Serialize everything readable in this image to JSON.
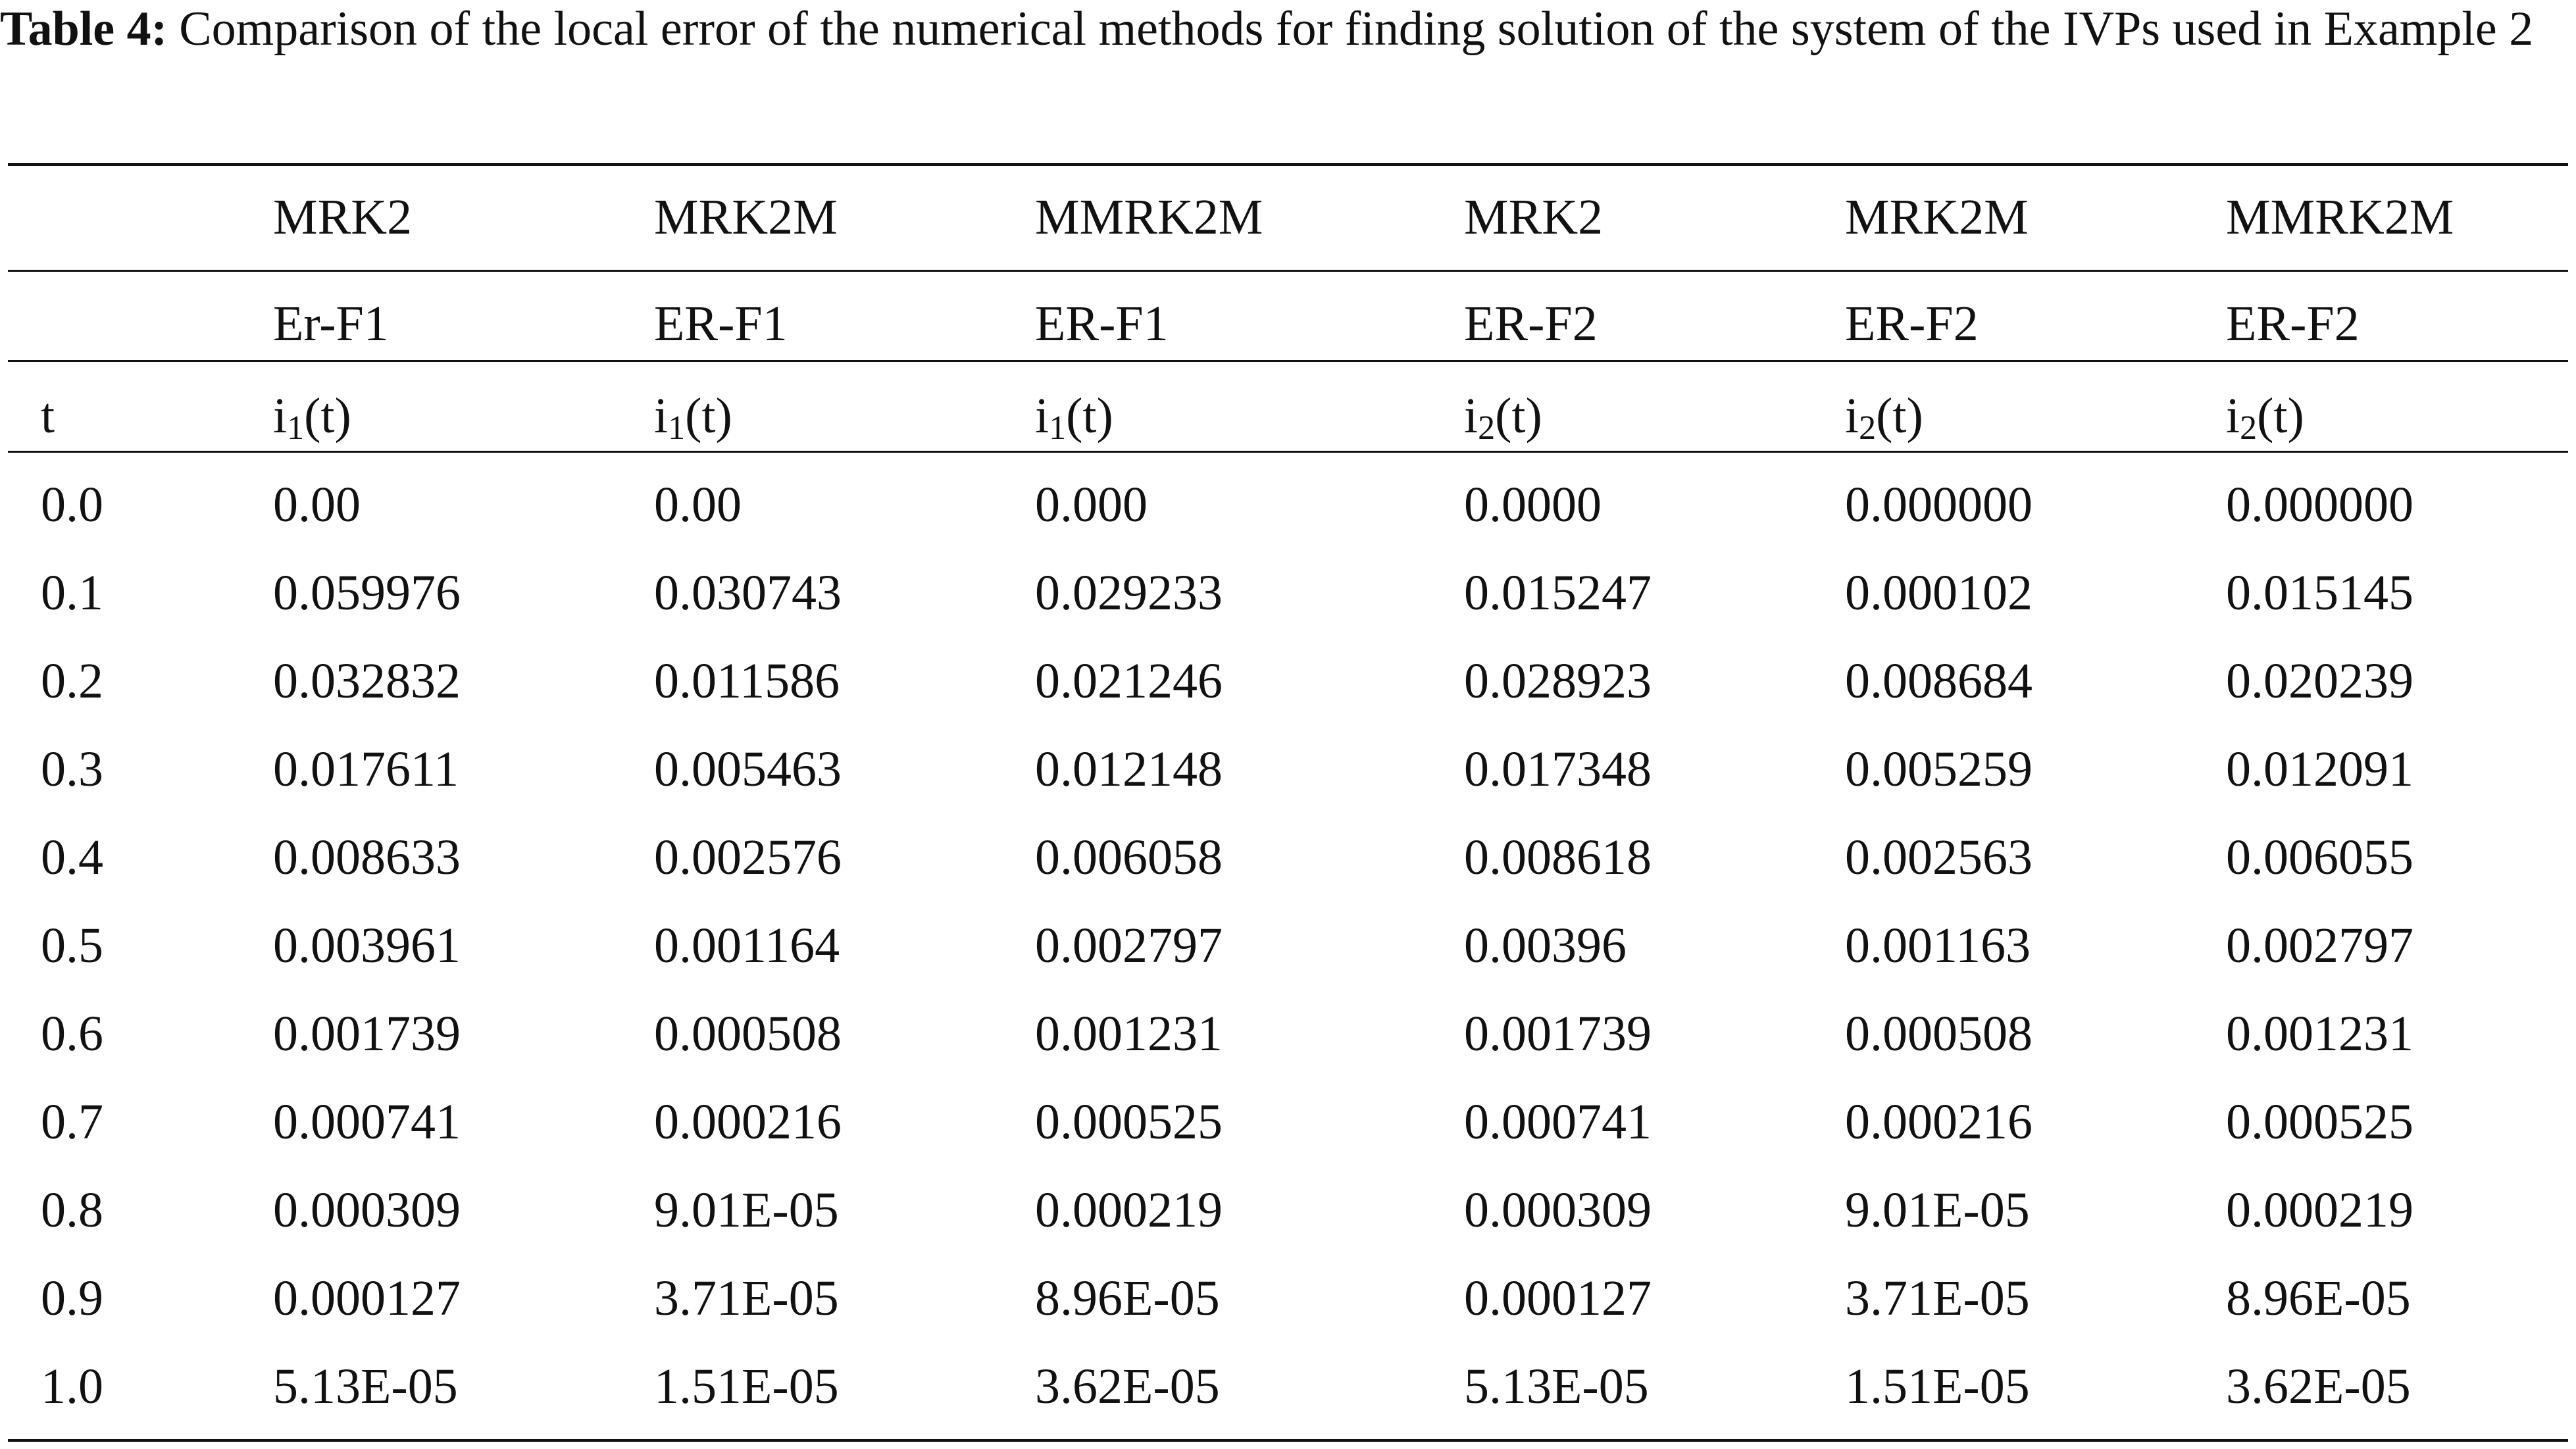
{
  "caption": {
    "label": "Table 4:",
    "text": "Comparison of the local error of the numerical methods for finding solution of the system of the IVPs used in Example 2"
  },
  "table": {
    "header": [
      [
        "",
        "MRK2",
        "MRK2M",
        "MMRK2M",
        "MRK2",
        "MRK2M",
        "MMRK2M"
      ],
      [
        "",
        "Er-F1",
        "ER-F1",
        "ER-F1",
        "ER-F2",
        "ER-F2",
        "ER-F2"
      ],
      [
        "t",
        {
          "base": "i",
          "sub": "1",
          "tail": "(t)"
        },
        {
          "base": "i",
          "sub": "1",
          "tail": "(t)"
        },
        {
          "base": "i",
          "sub": "1",
          "tail": "(t)"
        },
        {
          "base": "i",
          "sub": "2",
          "tail": "(t)"
        },
        {
          "base": "i",
          "sub": "2",
          "tail": "(t)"
        },
        {
          "base": "i",
          "sub": "2",
          "tail": "(t)"
        }
      ]
    ],
    "rows": [
      [
        "0.0",
        "0.00",
        "0.00",
        "0.000",
        "0.0000",
        "0.000000",
        "0.000000"
      ],
      [
        "0.1",
        "0.059976",
        "0.030743",
        "0.029233",
        "0.015247",
        "0.000102",
        "0.015145"
      ],
      [
        "0.2",
        "0.032832",
        "0.011586",
        "0.021246",
        "0.028923",
        "0.008684",
        "0.020239"
      ],
      [
        "0.3",
        "0.017611",
        "0.005463",
        "0.012148",
        "0.017348",
        "0.005259",
        "0.012091"
      ],
      [
        "0.4",
        "0.008633",
        "0.002576",
        "0.006058",
        "0.008618",
        "0.002563",
        "0.006055"
      ],
      [
        "0.5",
        "0.003961",
        "0.001164",
        "0.002797",
        "0.00396",
        "0.001163",
        "0.002797"
      ],
      [
        "0.6",
        "0.001739",
        "0.000508",
        "0.001231",
        "0.001739",
        "0.000508",
        "0.001231"
      ],
      [
        "0.7",
        "0.000741",
        "0.000216",
        "0.000525",
        "0.000741",
        "0.000216",
        "0.000525"
      ],
      [
        "0.8",
        "0.000309",
        "9.01E-05",
        "0.000219",
        "0.000309",
        "9.01E-05",
        "0.000219"
      ],
      [
        "0.9",
        "0.000127",
        "3.71E-05",
        "8.96E-05",
        "0.000127",
        "3.71E-05",
        "8.96E-05"
      ],
      [
        "1.0",
        "5.13E-05",
        "1.51E-05",
        "3.62E-05",
        "5.13E-05",
        "1.51E-05",
        "3.62E-05"
      ]
    ]
  }
}
